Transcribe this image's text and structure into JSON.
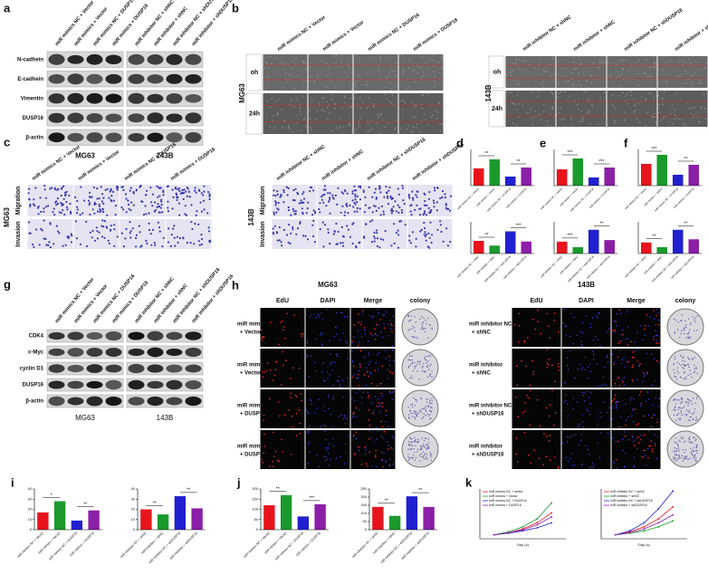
{
  "panels": {
    "a": {
      "letter": "a",
      "lanes_left": [
        "miR mimics NC + Vector",
        "miR mimics + Vector",
        "miR mimics NC + DUSP16",
        "miR mimics + DUSP16"
      ],
      "lanes_right": [
        "miR inhibitor NC + shNC",
        "miR inhibitor + shNC",
        "miR inhibitor NC + shDUSP16",
        "miR inhibitor + shDUSP16"
      ],
      "proteins": [
        "N-cadhein",
        "E-cadhein",
        "Vimentin",
        "DUSP16",
        "β-actin"
      ],
      "cells": [
        "MG63",
        "143B"
      ]
    },
    "b": {
      "letter": "b",
      "lanes_left": [
        "miR mimics NC + Vector",
        "miR mimics + Vector",
        "miR mimics NC + DUSP16",
        "miR mimics + DUSP16"
      ],
      "lanes_right": [
        "miR inhibitor NC + shNC",
        "miR inhibitor + shNC",
        "miR inhibitor NC + shDUSP16",
        "miR inhibitor + shDUSP16"
      ],
      "times": [
        "oh",
        "24h"
      ],
      "cells": [
        "MG63",
        "143B"
      ]
    },
    "c": {
      "letter": "c",
      "lanes_left": [
        "miR mimics NC + Vector",
        "miR mimics + Vector",
        "miR mimics NC + DUSP16",
        "miR mimics + DUSP16"
      ],
      "lanes_right": [
        "miR inhibitor NC + shNC",
        "miR inhibitor + shNC",
        "miR inhibitor NC + shDUSP16",
        "miR inhibitor + shDUSP16"
      ],
      "assays": [
        "Migration",
        "Invasion"
      ],
      "cells": [
        "MG63",
        "143B"
      ]
    },
    "g": {
      "letter": "g",
      "lanes_left": [
        "miR mimics NC + Vector",
        "miR mimics + Vector",
        "miR mimics NC + DUSP16",
        "miR mimics + DUSP16"
      ],
      "lanes_right": [
        "miR inhibitor NC + shNC",
        "miR inhibitor + shNC",
        "miR inhibitor NC + shDUSP16",
        "miR inhibitor + shDUSP16"
      ],
      "proteins": [
        "CDK4",
        "c-Myc",
        "cyclin D1",
        "DUSP16",
        "β-actin"
      ],
      "cells": [
        "MG63",
        "143B"
      ]
    },
    "h": {
      "letter": "h",
      "cells": [
        "MG63",
        "143B"
      ],
      "columns_left": [
        "EdU",
        "DAPI",
        "Merge",
        "colony"
      ],
      "columns_right": [
        "EdU",
        "DAPI",
        "Merge",
        "colony"
      ],
      "rows_left": [
        [
          "miR mimics NC",
          "+ Vector"
        ],
        [
          "miR mimics",
          "+ Vector"
        ],
        [
          "miR mimics NC",
          "+ DUSP16"
        ],
        [
          "miR mimics",
          "+ DUSP16"
        ]
      ],
      "rows_right": [
        [
          "miR inhibitor NC",
          "+ shNC"
        ],
        [
          "miR inhibitor",
          "+ shNC"
        ],
        [
          "miR inhibitor NC",
          "+ shDUSP16"
        ],
        [
          "miR inhibitor",
          "+ shDUSP16"
        ]
      ]
    }
  },
  "chart_data": [
    {
      "type": "bar",
      "letter": "d",
      "categories": [
        "miR mimics NC + Vector",
        "miR mimics + Vector",
        "miR mimics NC + DUSP16",
        "miR mimics + DUSP16"
      ],
      "values": [
        38,
        58,
        20,
        40
      ],
      "colors": [
        "#e8141c",
        "#1a9a2c",
        "#2020d0",
        "#8b1fa8"
      ],
      "ylim": [
        0,
        80
      ],
      "significance": [
        "**",
        "**"
      ]
    },
    {
      "type": "bar",
      "categories": [
        "miR inhibitor NC + shNC",
        "miR inhibitor + shNC",
        "miR inhibitor NC + shDUSP16",
        "miR inhibitor + shDUSP16"
      ],
      "values": [
        40,
        25,
        70,
        38
      ],
      "colors": [
        "#e8141c",
        "#1a9a2c",
        "#2020d0",
        "#8b1fa8"
      ],
      "ylim": [
        0,
        100
      ],
      "significance": [
        "**",
        "***"
      ]
    },
    {
      "type": "bar",
      "letter": "e",
      "categories": [
        "miR mimics NC + Vector",
        "miR mimics + Vector",
        "miR mimics NC + DUSP16",
        "miR mimics + DUSP16"
      ],
      "values": [
        180,
        300,
        90,
        200
      ],
      "colors": [
        "#e8141c",
        "#1a9a2c",
        "#2020d0",
        "#8b1fa8"
      ],
      "ylim": [
        0,
        400
      ],
      "significance": [
        "***",
        "***"
      ]
    },
    {
      "type": "bar",
      "categories": [
        "miR inhibitor NC + shNC",
        "miR inhibitor + shNC",
        "miR inhibitor NC + shDUSP16",
        "miR inhibitor + shDUSP16"
      ],
      "values": [
        150,
        80,
        300,
        170
      ],
      "colors": [
        "#e8141c",
        "#1a9a2c",
        "#2020d0",
        "#8b1fa8"
      ],
      "ylim": [
        0,
        400
      ],
      "significance": [
        "***",
        "**"
      ]
    },
    {
      "type": "bar",
      "letter": "f",
      "categories": [
        "miR mimics NC + Vector",
        "miR mimics + Vector",
        "miR mimics NC + DUSP16",
        "miR mimics + DUSP16"
      ],
      "values": [
        120,
        170,
        60,
        115
      ],
      "colors": [
        "#e8141c",
        "#1a9a2c",
        "#2020d0",
        "#8b1fa8"
      ],
      "ylim": [
        0,
        200
      ],
      "significance": [
        "***",
        "**"
      ]
    },
    {
      "type": "bar",
      "categories": [
        "miR inhibitor NC + shNC",
        "miR inhibitor + shNC",
        "miR inhibitor NC + shDUSP16",
        "miR inhibitor + shDUSP16"
      ],
      "values": [
        70,
        40,
        150,
        90
      ],
      "colors": [
        "#e8141c",
        "#1a9a2c",
        "#2020d0",
        "#8b1fa8"
      ],
      "ylim": [
        0,
        200
      ],
      "significance": [
        "**",
        "**"
      ]
    },
    {
      "type": "bar",
      "letter": "i",
      "categories": [
        "miR mimics NC + Vector",
        "miR mimics + Vector",
        "miR mimics NC + DUSP16",
        "miR mimics + DUSP16"
      ],
      "values": [
        17,
        28,
        9,
        19
      ],
      "colors": [
        "#e8141c",
        "#1a9a2c",
        "#2020d0",
        "#8b1fa8"
      ],
      "ylim": [
        0,
        40
      ],
      "yticks": [
        0,
        10,
        20,
        30,
        40
      ],
      "significance": [
        "*",
        "**"
      ]
    },
    {
      "type": "bar",
      "categories": [
        "miR inhibitor NC + shNC",
        "miR inhibitor + shNC",
        "miR inhibitor NC + shDUSP16",
        "miR inhibitor + shDUSP16"
      ],
      "values": [
        20,
        15,
        33,
        21
      ],
      "colors": [
        "#e8141c",
        "#1a9a2c",
        "#2020d0",
        "#8b1fa8"
      ],
      "ylim": [
        0,
        40
      ],
      "yticks": [
        0,
        10,
        20,
        30,
        40
      ],
      "significance": [
        "**",
        "**"
      ]
    },
    {
      "type": "bar",
      "letter": "j",
      "categories": [
        "miR mimics NC + Vector",
        "miR mimics + Vector",
        "miR mimics NC + DUSP16",
        "miR mimics + DUSP16"
      ],
      "values": [
        120,
        170,
        65,
        125
      ],
      "colors": [
        "#e8141c",
        "#1a9a2c",
        "#2020d0",
        "#8b1fa8"
      ],
      "ylim": [
        0,
        200
      ],
      "yticks": [
        0,
        50,
        100,
        150,
        200
      ],
      "significance": [
        "**",
        "***"
      ]
    },
    {
      "type": "bar",
      "categories": [
        "miR inhibitor NC + shNC",
        "miR inhibitor + shNC",
        "miR inhibitor NC + shDUSP16",
        "miR inhibitor + shDUSP16"
      ],
      "values": [
        140,
        85,
        205,
        140
      ],
      "colors": [
        "#e8141c",
        "#1a9a2c",
        "#2020d0",
        "#8b1fa8"
      ],
      "ylim": [
        0,
        250
      ],
      "yticks": [
        0,
        50,
        100,
        150,
        200,
        250
      ],
      "significance": [
        "**",
        "**"
      ]
    },
    {
      "type": "line",
      "letter": "k",
      "x": [
        1,
        2,
        3,
        4,
        5
      ],
      "xlim": [
        0,
        6
      ],
      "ylim": [
        0,
        2.5
      ],
      "x_label": "Day (s)",
      "series": [
        {
          "name": "miR mimics NC + vector",
          "color": "#e8141c",
          "values": [
            0.2,
            0.3,
            0.5,
            0.8,
            1.3
          ]
        },
        {
          "name": "miR mimics + vector",
          "color": "#1a9a2c",
          "values": [
            0.2,
            0.35,
            0.6,
            1.0,
            1.8
          ]
        },
        {
          "name": "miR mimics NC + DUSP16",
          "color": "#2020d0",
          "values": [
            0.2,
            0.28,
            0.4,
            0.55,
            0.8
          ]
        },
        {
          "name": "miR mimics + DUSP16",
          "color": "#8b1fa8",
          "values": [
            0.2,
            0.3,
            0.45,
            0.7,
            1.1
          ]
        }
      ]
    },
    {
      "type": "line",
      "x": [
        1,
        2,
        3,
        4,
        5
      ],
      "xlim": [
        0,
        6
      ],
      "ylim": [
        0,
        2.5
      ],
      "x_label": "Day (s)",
      "series": [
        {
          "name": "miR inhibitor NC + shNC",
          "color": "#e8141c",
          "values": [
            0.2,
            0.35,
            0.6,
            1.0,
            1.6
          ]
        },
        {
          "name": "miR inhibitor + shNC",
          "color": "#1a9a2c",
          "values": [
            0.2,
            0.28,
            0.4,
            0.6,
            0.9
          ]
        },
        {
          "name": "miR inhibitor NC + shDUSP16",
          "color": "#2020d0",
          "values": [
            0.2,
            0.4,
            0.8,
            1.5,
            2.4
          ]
        },
        {
          "name": "miR inhibitor + shDUSP16",
          "color": "#8b1fa8",
          "values": [
            0.2,
            0.3,
            0.5,
            0.8,
            1.2
          ]
        }
      ]
    }
  ]
}
